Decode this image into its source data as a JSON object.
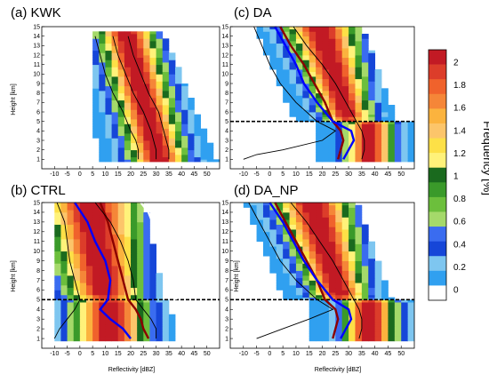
{
  "chart_data": [
    {
      "type": "heatmap",
      "panel": "a",
      "title": "(a) KWK",
      "xlabel": "",
      "ylabel": "Height [km]",
      "xlim": [
        -15,
        55
      ],
      "ylim": [
        0,
        15
      ],
      "xticks": [
        -10,
        -5,
        0,
        5,
        10,
        15,
        20,
        25,
        30,
        35,
        40,
        45,
        50
      ],
      "yticks": [
        1,
        2,
        3,
        4,
        5,
        6,
        7,
        8,
        9,
        10,
        11,
        12,
        13,
        14,
        15
      ],
      "cfad": {
        "top_height": 14.5,
        "low_limit": 5,
        "peak": [
          25,
          31
        ],
        "width": 10,
        "slope": 13
      },
      "lines": [
        {
          "color": "black",
          "points": [
            [
              23,
              1
            ],
            [
              23,
              2
            ],
            [
              22,
              3
            ],
            [
              20,
              4
            ],
            [
              17,
              6
            ],
            [
              13,
              8
            ],
            [
              10,
              10
            ],
            [
              8,
              12
            ],
            [
              6,
              14
            ]
          ]
        },
        {
          "color": "black",
          "points": [
            [
              30,
              1
            ],
            [
              30,
              2
            ],
            [
              29,
              3
            ],
            [
              28,
              4
            ],
            [
              25,
              6
            ],
            [
              21,
              8
            ],
            [
              18,
              10
            ],
            [
              15,
              12
            ],
            [
              13,
              14
            ]
          ]
        },
        {
          "color": "black",
          "points": [
            [
              35,
              1
            ],
            [
              35,
              2
            ],
            [
              34,
              3
            ],
            [
              33,
              4
            ],
            [
              31,
              6
            ],
            [
              27,
              8
            ],
            [
              24,
              10
            ],
            [
              21,
              12
            ],
            [
              19,
              14
            ]
          ]
        }
      ]
    },
    {
      "type": "heatmap",
      "panel": "b",
      "title": "(b) CTRL",
      "xlabel": "Reflectivity [dBZ]",
      "ylabel": "Height [km]",
      "xlim": [
        -15,
        55
      ],
      "ylim": [
        0,
        15
      ],
      "xticks": [
        -10,
        -5,
        0,
        5,
        10,
        15,
        20,
        25,
        30,
        35,
        40,
        45,
        50
      ],
      "yticks": [
        1,
        2,
        3,
        4,
        5,
        6,
        7,
        8,
        9,
        10,
        11,
        12,
        13,
        14,
        15
      ],
      "cfad": {
        "top_height": 15,
        "low_limit": -12,
        "peak": [
          12,
          10
        ],
        "width": 13,
        "slope": 6,
        "melting_layer": 5
      },
      "lines": [
        {
          "color": "darkred",
          "points": [
            [
              27,
              1
            ],
            [
              25,
              2
            ],
            [
              24,
              3
            ],
            [
              22,
              4
            ],
            [
              19,
              5
            ],
            [
              17,
              7
            ],
            [
              15,
              9
            ],
            [
              13,
              11
            ],
            [
              11,
              13
            ],
            [
              8,
              15
            ]
          ]
        },
        {
          "color": "blue",
          "points": [
            [
              20,
              1
            ],
            [
              17,
              2
            ],
            [
              12,
              3
            ],
            [
              8,
              4
            ],
            [
              11,
              5
            ],
            [
              12,
              7
            ],
            [
              10,
              9
            ],
            [
              6,
              11
            ],
            [
              3,
              13
            ],
            [
              -2,
              15
            ]
          ]
        },
        {
          "color": "white",
          "points": [
            [
              38,
              5
            ],
            [
              37,
              6
            ],
            [
              35,
              8
            ],
            [
              33,
              10
            ],
            [
              30,
              12
            ],
            [
              27,
              14
            ],
            [
              24,
              15
            ]
          ]
        },
        {
          "color": "black",
          "points": [
            [
              -10,
              1
            ],
            [
              -8,
              2
            ],
            [
              -5,
              3
            ],
            [
              -2,
              4
            ],
            [
              0,
              5
            ],
            [
              -2,
              7
            ],
            [
              -4,
              9
            ],
            [
              -5,
              11
            ],
            [
              -6,
              13
            ],
            [
              -9,
              15
            ]
          ]
        },
        {
          "color": "black",
          "points": [
            [
              30,
              1
            ],
            [
              30,
              2
            ],
            [
              28,
              3
            ],
            [
              25,
              4
            ],
            [
              22,
              5
            ],
            [
              21,
              7
            ],
            [
              19,
              9
            ],
            [
              16,
              11
            ],
            [
              12,
              13
            ],
            [
              6,
              15
            ]
          ]
        }
      ]
    },
    {
      "type": "heatmap",
      "panel": "c",
      "title": "(c) DA",
      "xlabel": "",
      "ylabel": "",
      "xlim": [
        -15,
        55
      ],
      "ylim": [
        0,
        15
      ],
      "xticks": [
        -10,
        -5,
        0,
        5,
        10,
        15,
        20,
        25,
        30,
        35,
        40,
        45,
        50
      ],
      "yticks": [
        1,
        2,
        3,
        4,
        5,
        6,
        7,
        8,
        9,
        10,
        11,
        12,
        13,
        14,
        15
      ],
      "cfad": {
        "top_height": 15,
        "low_limit": -12,
        "peak": [
          38,
          30
        ],
        "width": 8,
        "slope": 11,
        "melting_layer": 5
      },
      "lines": [
        {
          "color": "darkred",
          "points": [
            [
              26,
              1
            ],
            [
              27,
              2
            ],
            [
              28,
              3
            ],
            [
              27,
              4
            ],
            [
              24,
              5
            ],
            [
              21,
              7
            ],
            [
              17,
              9
            ],
            [
              13,
              11
            ],
            [
              8,
              13
            ],
            [
              4,
              15
            ]
          ]
        },
        {
          "color": "blue",
          "points": [
            [
              28,
              1
            ],
            [
              30,
              2
            ],
            [
              32,
              3
            ],
            [
              31,
              4
            ],
            [
              24,
              5
            ],
            [
              18,
              7
            ],
            [
              13,
              9
            ],
            [
              10,
              11
            ],
            [
              6,
              13
            ],
            [
              2,
              15
            ]
          ]
        },
        {
          "color": "black",
          "points": [
            [
              -10,
              1
            ],
            [
              -5,
              1.5
            ],
            [
              5,
              2
            ],
            [
              20,
              3
            ],
            [
              25,
              4
            ],
            [
              18,
              5
            ],
            [
              10,
              7
            ],
            [
              4,
              9
            ],
            [
              0,
              11
            ],
            [
              -3,
              13
            ],
            [
              -6,
              15
            ]
          ]
        },
        {
          "color": "black",
          "points": [
            [
              35,
              1
            ],
            [
              36,
              2
            ],
            [
              36,
              3
            ],
            [
              35,
              4
            ],
            [
              33,
              5
            ],
            [
              29,
              7
            ],
            [
              25,
              9
            ],
            [
              20,
              11
            ],
            [
              14,
              13
            ],
            [
              9,
              15
            ]
          ]
        }
      ]
    },
    {
      "type": "heatmap",
      "panel": "d",
      "title": "(d) DA_NP",
      "xlabel": "Reflectivity [dBZ]",
      "ylabel": "Height [km]",
      "xlim": [
        -15,
        55
      ],
      "ylim": [
        0,
        15
      ],
      "xticks": [
        -10,
        -5,
        0,
        5,
        10,
        15,
        20,
        25,
        30,
        35,
        40,
        45,
        50
      ],
      "yticks": [
        1,
        2,
        3,
        4,
        5,
        6,
        7,
        8,
        9,
        10,
        11,
        12,
        13,
        14,
        15
      ],
      "cfad": {
        "top_height": 15,
        "low_limit": -12,
        "peak": [
          38,
          27
        ],
        "width": 9,
        "slope": 11,
        "melting_layer": 5
      },
      "lines": [
        {
          "color": "darkred",
          "points": [
            [
              24,
              1
            ],
            [
              25,
              2
            ],
            [
              26,
              3
            ],
            [
              25,
              4
            ],
            [
              21,
              5
            ],
            [
              18,
              7
            ],
            [
              14,
              9
            ],
            [
              10,
              11
            ],
            [
              6,
              13
            ],
            [
              2,
              15
            ]
          ]
        },
        {
          "color": "blue",
          "points": [
            [
              27,
              1
            ],
            [
              29,
              2
            ],
            [
              31,
              3
            ],
            [
              30,
              4
            ],
            [
              24,
              5
            ],
            [
              18,
              7
            ],
            [
              13,
              9
            ],
            [
              9,
              11
            ],
            [
              5,
              13
            ],
            [
              0,
              15
            ]
          ]
        },
        {
          "color": "black",
          "points": [
            [
              -5,
              1
            ],
            [
              5,
              2
            ],
            [
              15,
              3
            ],
            [
              24,
              4
            ],
            [
              18,
              5
            ],
            [
              10,
              7
            ],
            [
              4,
              9
            ],
            [
              0,
              11
            ],
            [
              -4,
              13
            ],
            [
              -8,
              15
            ]
          ]
        },
        {
          "color": "black",
          "points": [
            [
              34,
              1
            ],
            [
              35,
              2
            ],
            [
              35,
              3
            ],
            [
              34,
              4
            ],
            [
              32,
              5
            ],
            [
              28,
              7
            ],
            [
              24,
              9
            ],
            [
              19,
              11
            ],
            [
              14,
              13
            ],
            [
              8,
              15
            ]
          ]
        }
      ]
    }
  ],
  "colorbar": {
    "title": "Frequency [%]",
    "labels": [
      "2",
      "1.8",
      "1.6",
      "1.4",
      "1.2",
      "1",
      "0.8",
      "0.6",
      "0.4",
      "0.2",
      "0"
    ],
    "colors": [
      "#ffffff",
      "#30a0f0",
      "#7ec6f0",
      "#1646d8",
      "#3a6cf0",
      "#a5d96a",
      "#6cbf3c",
      "#3a9a2a",
      "#1a6a1e",
      "#fff27a",
      "#fde047",
      "#fcc56a",
      "#fbb33e",
      "#f58638",
      "#f0622c",
      "#dc3d2a",
      "#c21a24"
    ]
  }
}
